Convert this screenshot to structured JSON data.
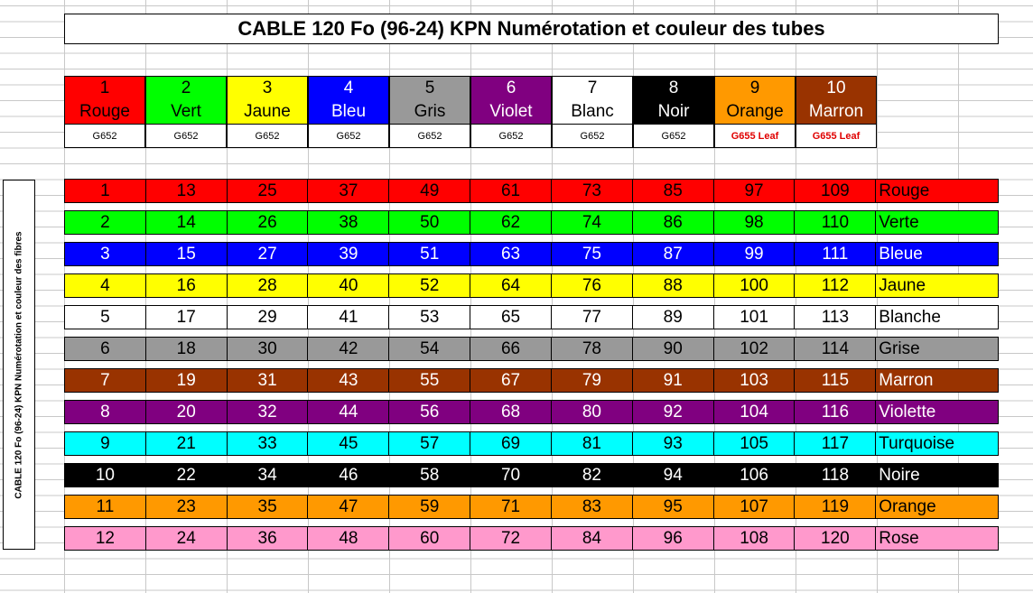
{
  "title": "CABLE 120 Fo (96-24)  KPN Numérotation et couleur des tubes",
  "side_label": "CABLE 120 Fo (96-24) KPN Numérotation et couleur des fibres",
  "tubes": [
    {
      "num": "1",
      "name": "Rouge",
      "type": "G652",
      "bg": "#ff0000",
      "fg": "#000000",
      "leaf": false
    },
    {
      "num": "2",
      "name": "Vert",
      "type": "G652",
      "bg": "#00ff00",
      "fg": "#000000",
      "leaf": false
    },
    {
      "num": "3",
      "name": "Jaune",
      "type": "G652",
      "bg": "#ffff00",
      "fg": "#000000",
      "leaf": false
    },
    {
      "num": "4",
      "name": "Bleu",
      "type": "G652",
      "bg": "#0000ff",
      "fg": "#ffffff",
      "leaf": false
    },
    {
      "num": "5",
      "name": "Gris",
      "type": "G652",
      "bg": "#999999",
      "fg": "#000000",
      "leaf": false
    },
    {
      "num": "6",
      "name": "Violet",
      "type": "G652",
      "bg": "#800080",
      "fg": "#ffffff",
      "leaf": false
    },
    {
      "num": "7",
      "name": "Blanc",
      "type": "G652",
      "bg": "#ffffff",
      "fg": "#000000",
      "leaf": false
    },
    {
      "num": "8",
      "name": "Noir",
      "type": "G652",
      "bg": "#000000",
      "fg": "#ffffff",
      "leaf": false
    },
    {
      "num": "9",
      "name": "Orange",
      "type": "G655 Leaf",
      "bg": "#ff9900",
      "fg": "#000000",
      "leaf": true
    },
    {
      "num": "10",
      "name": "Marron",
      "type": "G655 Leaf",
      "bg": "#993300",
      "fg": "#ffffff",
      "leaf": true
    }
  ],
  "fibers": [
    {
      "name": "Rouge",
      "bg": "#ff0000",
      "fg": "#000000",
      "values": [
        "1",
        "13",
        "25",
        "37",
        "49",
        "61",
        "73",
        "85",
        "97",
        "109"
      ]
    },
    {
      "name": "Verte",
      "bg": "#00ff00",
      "fg": "#000000",
      "values": [
        "2",
        "14",
        "26",
        "38",
        "50",
        "62",
        "74",
        "86",
        "98",
        "110"
      ]
    },
    {
      "name": "Bleue",
      "bg": "#0000ff",
      "fg": "#ffffff",
      "values": [
        "3",
        "15",
        "27",
        "39",
        "51",
        "63",
        "75",
        "87",
        "99",
        "111"
      ]
    },
    {
      "name": "Jaune",
      "bg": "#ffff00",
      "fg": "#000000",
      "values": [
        "4",
        "16",
        "28",
        "40",
        "52",
        "64",
        "76",
        "88",
        "100",
        "112"
      ]
    },
    {
      "name": "Blanche",
      "bg": "#ffffff",
      "fg": "#000000",
      "values": [
        "5",
        "17",
        "29",
        "41",
        "53",
        "65",
        "77",
        "89",
        "101",
        "113"
      ]
    },
    {
      "name": "Grise",
      "bg": "#999999",
      "fg": "#000000",
      "values": [
        "6",
        "18",
        "30",
        "42",
        "54",
        "66",
        "78",
        "90",
        "102",
        "114"
      ]
    },
    {
      "name": "Marron",
      "bg": "#993300",
      "fg": "#ffffff",
      "values": [
        "7",
        "19",
        "31",
        "43",
        "55",
        "67",
        "79",
        "91",
        "103",
        "115"
      ]
    },
    {
      "name": "Violette",
      "bg": "#800080",
      "fg": "#ffffff",
      "values": [
        "8",
        "20",
        "32",
        "44",
        "56",
        "68",
        "80",
        "92",
        "104",
        "116"
      ]
    },
    {
      "name": "Turquoise",
      "bg": "#00ffff",
      "fg": "#000000",
      "values": [
        "9",
        "21",
        "33",
        "45",
        "57",
        "69",
        "81",
        "93",
        "105",
        "117"
      ]
    },
    {
      "name": "Noire",
      "bg": "#000000",
      "fg": "#ffffff",
      "values": [
        "10",
        "22",
        "34",
        "46",
        "58",
        "70",
        "82",
        "94",
        "106",
        "118"
      ]
    },
    {
      "name": "Orange",
      "bg": "#ff9900",
      "fg": "#000000",
      "values": [
        "11",
        "23",
        "35",
        "47",
        "59",
        "71",
        "83",
        "95",
        "107",
        "119"
      ]
    },
    {
      "name": "Rose",
      "bg": "#ff99cc",
      "fg": "#000000",
      "values": [
        "12",
        "24",
        "36",
        "48",
        "60",
        "72",
        "84",
        "96",
        "108",
        "120"
      ]
    }
  ]
}
